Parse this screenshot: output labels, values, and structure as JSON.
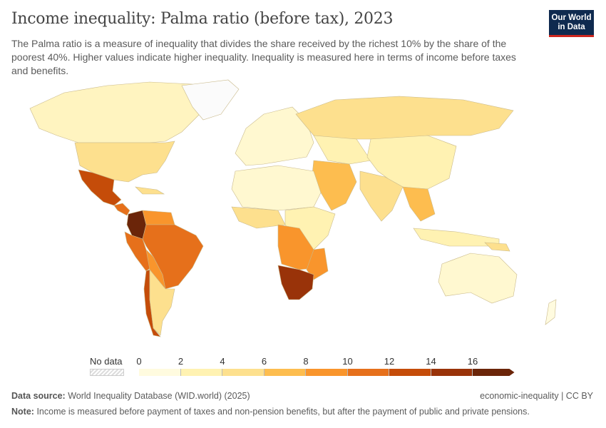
{
  "header": {
    "title": "Income inequality: Palma ratio (before tax), 2023",
    "subtitle": "The Palma ratio is a measure of inequality that divides the share received by the richest 10% by the share of the poorest 40%. Higher values indicate higher inequality. Inequality is measured here in terms of income before taxes and benefits.",
    "logo_line1": "Our World",
    "logo_line2": "in Data"
  },
  "legend": {
    "no_data_label": "No data",
    "ticks": [
      "0",
      "2",
      "4",
      "6",
      "8",
      "10",
      "12",
      "14",
      "16"
    ],
    "bins": [
      {
        "range": "0-2",
        "color": "#fffbdf"
      },
      {
        "range": "2-4",
        "color": "#fff2b2"
      },
      {
        "range": "4-6",
        "color": "#fde08e"
      },
      {
        "range": "6-8",
        "color": "#fdbd4f"
      },
      {
        "range": "8-10",
        "color": "#f9952c"
      },
      {
        "range": "10-12",
        "color": "#e6701b"
      },
      {
        "range": "12-14",
        "color": "#c54c09"
      },
      {
        "range": "14-16",
        "color": "#993309"
      },
      {
        "range": "16+",
        "color": "#6b2509"
      }
    ]
  },
  "footer": {
    "source_label": "Data source:",
    "source_text": "World Inequality Database (WID.world) (2025)",
    "license": "economic-inequality | CC BY",
    "note_label": "Note:",
    "note_text": "Income is measured before payment of taxes and non-pension benefits, but after the payment of public and private pensions."
  }
}
